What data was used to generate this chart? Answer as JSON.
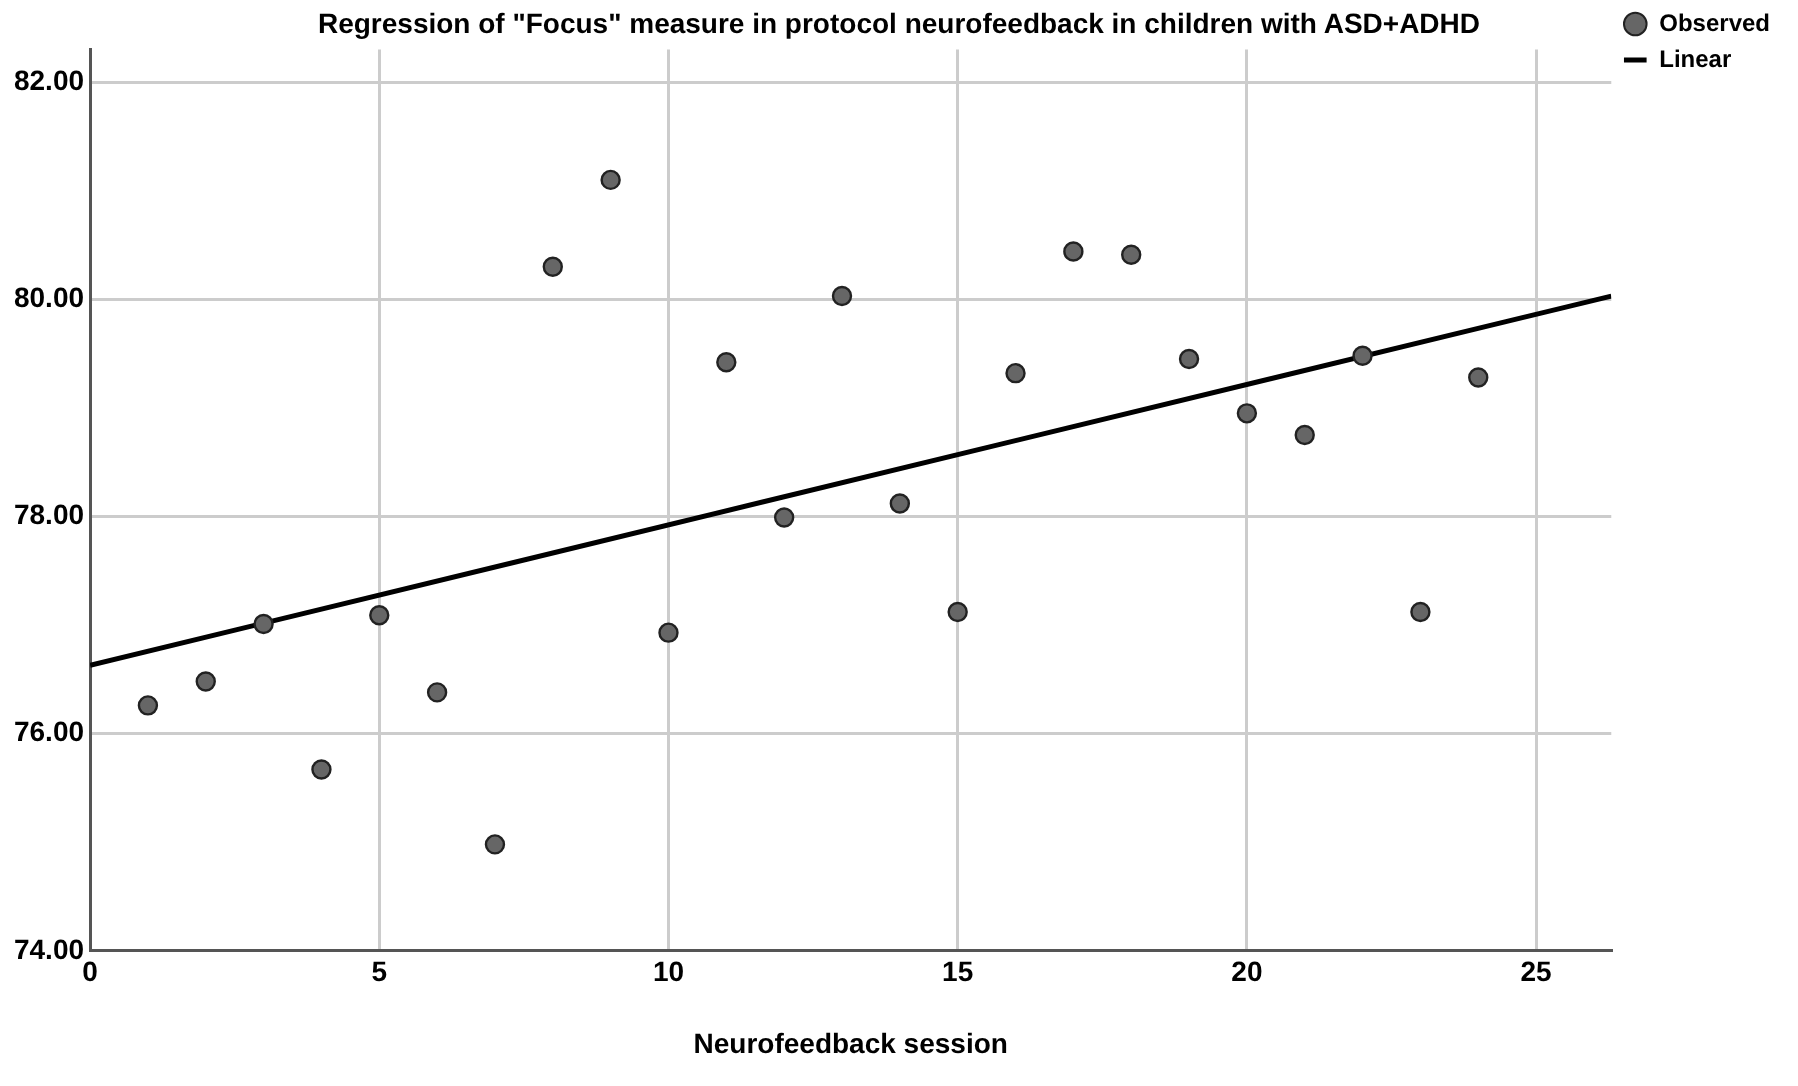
{
  "chart_data": {
    "type": "scatter",
    "title": "Regression of \"Focus\" measure in protocol neurofeedback in children with ASD+ADHD",
    "xlabel": "Neurofeedback session",
    "x": [
      1,
      2,
      3,
      4,
      5,
      6,
      7,
      8,
      9,
      10,
      11,
      12,
      13,
      14,
      15,
      16,
      17,
      18,
      19,
      20,
      21,
      22,
      23,
      24
    ],
    "series": [
      {
        "name": "Observed",
        "marker": "circle",
        "color": "#666666",
        "values": [
          76.26,
          76.48,
          77.01,
          75.67,
          77.09,
          76.38,
          74.98,
          80.3,
          81.1,
          76.93,
          79.42,
          77.99,
          80.03,
          78.12,
          77.12,
          79.32,
          80.44,
          80.41,
          79.45,
          78.95,
          78.75,
          79.48,
          77.12,
          79.28
        ]
      },
      {
        "name": "Linear",
        "type": "line",
        "marker": "none",
        "color": "#000000",
        "x": [
          0,
          26.3
        ],
        "values": [
          76.63,
          80.03
        ]
      }
    ],
    "xlim": [
      0,
      26.3
    ],
    "xticks": [
      0,
      5,
      10,
      15,
      20,
      25
    ],
    "ylim": [
      74,
      82.3
    ],
    "yticks": [
      {
        "value": 74,
        "label": "74.00"
      },
      {
        "value": 76,
        "label": "76.00"
      },
      {
        "value": 78,
        "label": "78.00"
      },
      {
        "value": 80,
        "label": "80.00"
      },
      {
        "value": 82,
        "label": "82.00"
      }
    ],
    "grid": true,
    "legend": "top right",
    "line_style": "solid"
  }
}
